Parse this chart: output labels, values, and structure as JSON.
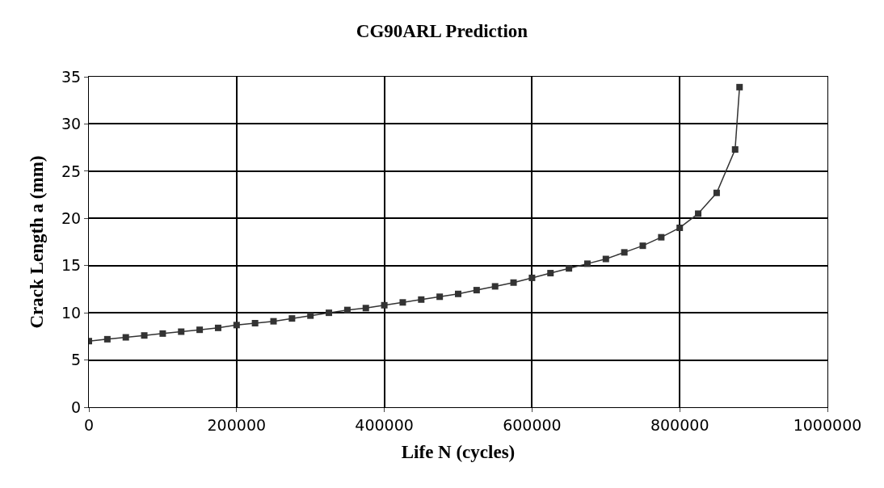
{
  "chart_data": {
    "type": "line",
    "title": "CG90ARL Prediction",
    "xlabel": "Life N (cycles)",
    "ylabel": "Crack Length a (mm)",
    "x": [
      0,
      25000,
      50000,
      75000,
      100000,
      125000,
      150000,
      175000,
      200000,
      225000,
      250000,
      275000,
      300000,
      325000,
      350000,
      375000,
      400000,
      425000,
      450000,
      475000,
      500000,
      525000,
      550000,
      575000,
      600000,
      625000,
      650000,
      675000,
      700000,
      725000,
      750000,
      775000,
      800000,
      825000,
      850000,
      875000,
      881000
    ],
    "series": [
      {
        "color": "#333333",
        "values": [
          7.0,
          7.2,
          7.4,
          7.6,
          7.8,
          8.0,
          8.2,
          8.4,
          8.7,
          8.9,
          9.1,
          9.4,
          9.7,
          10.0,
          10.3,
          10.5,
          10.8,
          11.1,
          11.4,
          11.7,
          12.0,
          12.4,
          12.8,
          13.2,
          13.7,
          14.2,
          14.7,
          15.2,
          15.7,
          16.4,
          17.1,
          18.0,
          19.0,
          20.5,
          22.7,
          27.3,
          33.9
        ]
      }
    ],
    "xlim": [
      0,
      1000000
    ],
    "xticks": [
      0,
      200000,
      400000,
      600000,
      800000,
      1000000
    ],
    "ylim": [
      0,
      35
    ],
    "yticks": [
      0,
      5,
      10,
      15,
      20,
      25,
      30,
      35
    ],
    "grid": true,
    "marker": "square",
    "line_style": "solid"
  }
}
